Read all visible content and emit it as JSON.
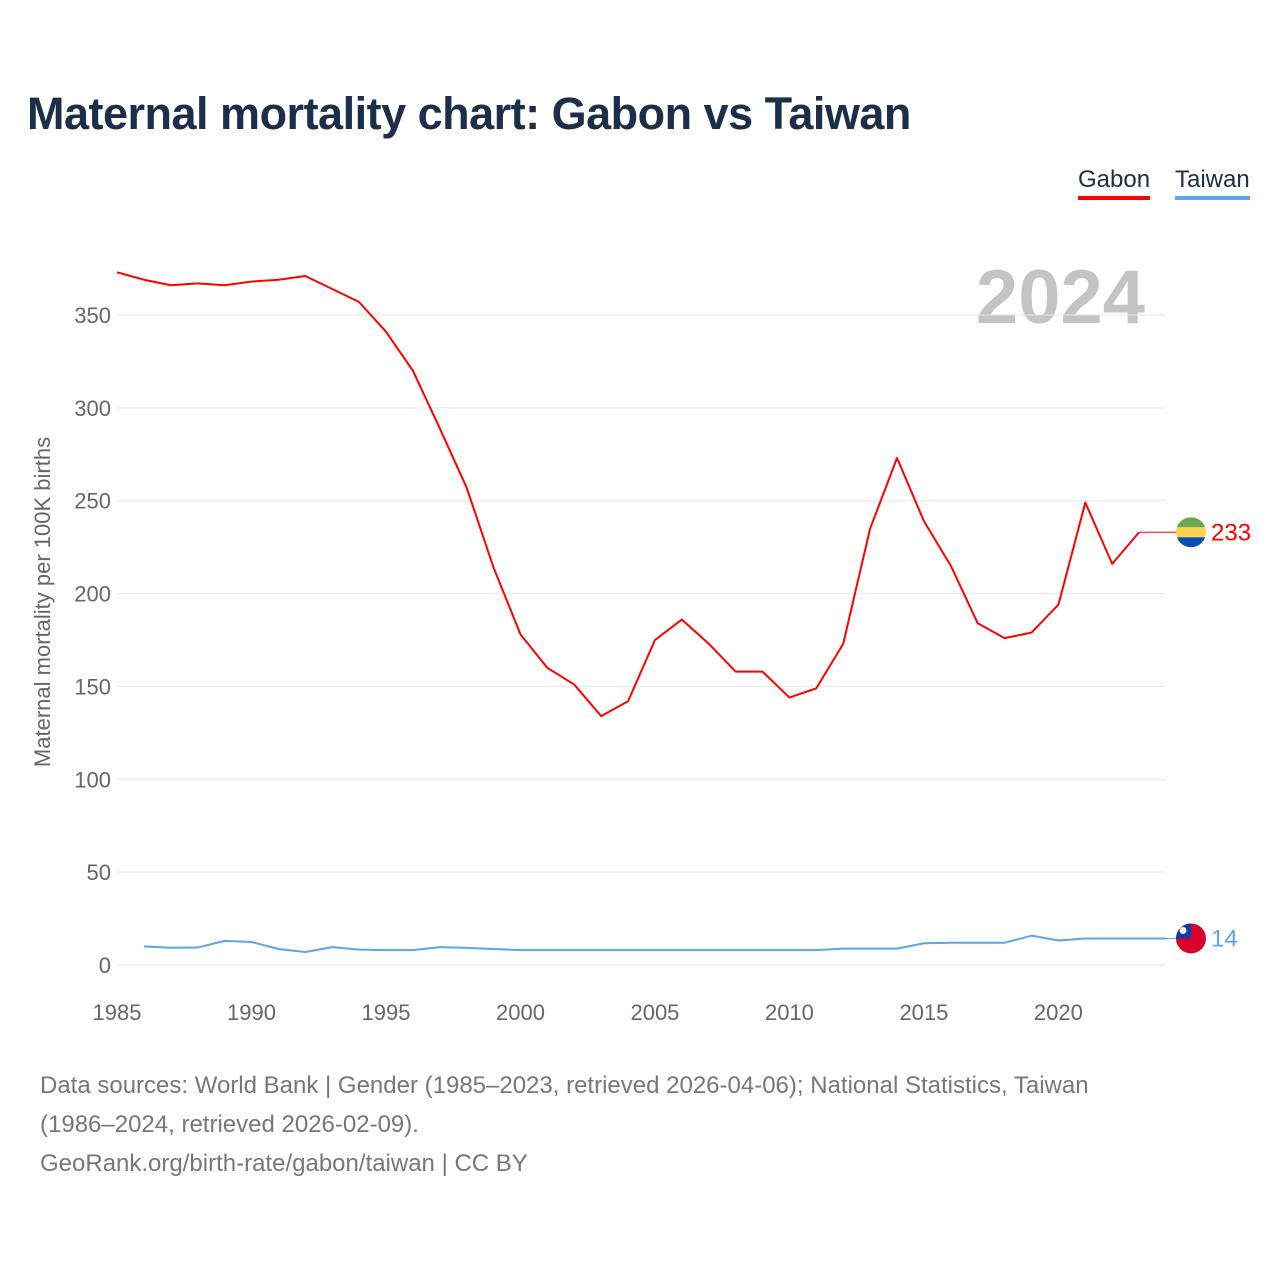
{
  "title": "Maternal mortality chart: Gabon vs Taiwan",
  "legend": {
    "gabon": "Gabon",
    "taiwan": "Taiwan"
  },
  "footer": {
    "line1": "Data sources: World Bank | Gender (1985–2023, retrieved 2026-04-06); National Statistics, Taiwan",
    "line2": "(1986–2024, retrieved 2026-02-09).",
    "line3": "GeoRank.org/birth-rate/gabon/taiwan | CC BY"
  },
  "chart_data": {
    "type": "line",
    "title": "Maternal mortality chart: Gabon vs Taiwan",
    "year_label": "2024",
    "xlabel": "",
    "ylabel": "Maternal mortality per 100K births",
    "xlim": [
      1985,
      2024
    ],
    "ylim": [
      0,
      375
    ],
    "xticks": [
      1985,
      1990,
      1995,
      2000,
      2005,
      2010,
      2015,
      2020
    ],
    "yticks": [
      0,
      50,
      100,
      150,
      200,
      250,
      300,
      350
    ],
    "grid": true,
    "legend_position": "top-right",
    "series": [
      {
        "name": "Gabon",
        "color": "#ff0000",
        "end_label": "233",
        "end_year": 2024,
        "x": [
          1985,
          1986,
          1987,
          1988,
          1989,
          1990,
          1991,
          1992,
          1993,
          1994,
          1995,
          1996,
          1997,
          1998,
          1999,
          2000,
          2001,
          2002,
          2003,
          2004,
          2005,
          2006,
          2007,
          2008,
          2009,
          2010,
          2011,
          2012,
          2013,
          2014,
          2015,
          2016,
          2017,
          2018,
          2019,
          2020,
          2021,
          2022,
          2023
        ],
        "values": [
          373,
          369,
          366,
          367,
          366,
          368,
          369,
          371,
          364,
          357,
          341,
          320,
          289,
          257,
          214,
          178,
          160,
          151,
          134,
          142,
          175,
          186,
          173,
          158,
          158,
          144,
          149,
          173,
          235,
          273,
          239,
          215,
          184,
          176,
          179,
          194,
          249,
          216,
          233
        ]
      },
      {
        "name": "Taiwan",
        "color": "#5aa5ec",
        "end_label": "14",
        "end_year": 2024,
        "x": [
          1986,
          1987,
          1988,
          1989,
          1990,
          1991,
          1992,
          1993,
          1994,
          1995,
          1996,
          1997,
          1998,
          1999,
          2000,
          2001,
          2002,
          2003,
          2004,
          2005,
          2006,
          2007,
          2008,
          2009,
          2010,
          2011,
          2012,
          2013,
          2014,
          2015,
          2016,
          2017,
          2018,
          2019,
          2020,
          2021,
          2022,
          2023,
          2024
        ],
        "values": [
          10,
          9.3,
          9.4,
          13,
          12.4,
          8.6,
          7,
          9.6,
          8.3,
          8,
          8,
          9.6,
          9.2,
          8.6,
          8,
          8,
          8,
          8,
          8,
          8,
          8,
          8,
          8,
          8,
          8,
          8,
          8.8,
          8.8,
          8.8,
          11.7,
          12,
          12,
          12,
          15.8,
          13.2,
          14.3,
          14.3,
          14.3,
          14.3
        ]
      }
    ]
  }
}
